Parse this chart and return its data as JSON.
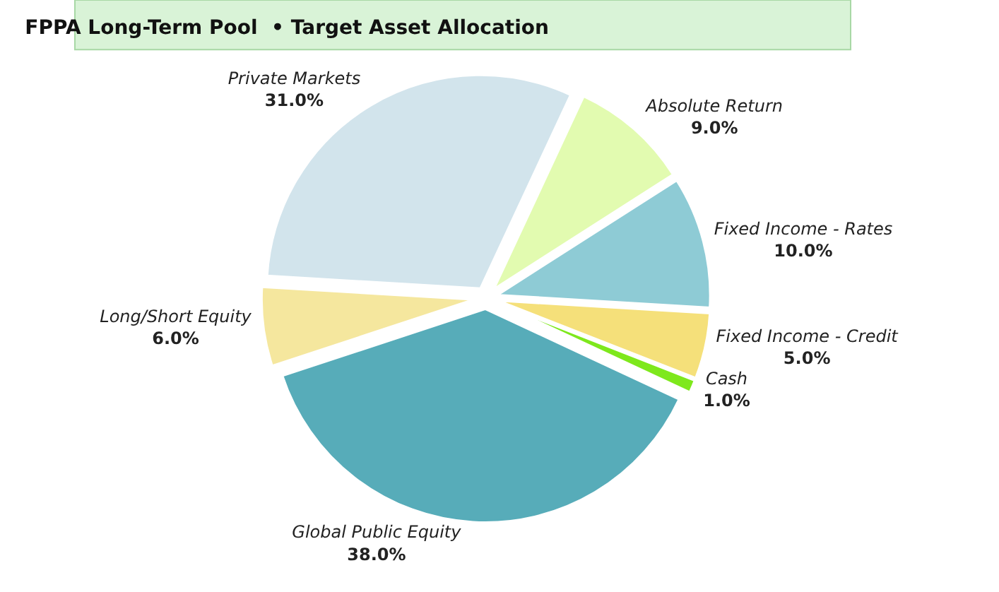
{
  "chart_data": {
    "type": "pie",
    "title": "FPPA Long-Term Pool  • Target Asset Allocation",
    "categories": [
      "Absolute Return",
      "Fixed Income - Rates",
      "Fixed Income - Credit",
      "Cash",
      "Global Public Equity",
      "Long/Short Equity",
      "Private Markets"
    ],
    "values": [
      9.0,
      10.0,
      5.0,
      1.0,
      38.0,
      6.0,
      31.0
    ],
    "value_labels": [
      "9.0%",
      "10.0%",
      "5.0%",
      "1.0%",
      "38.0%",
      "6.0%",
      "31.0%"
    ],
    "colors": [
      "#e2fbb0",
      "#8ecbd5",
      "#f5e07a",
      "#7ee81c",
      "#57acb9",
      "#f5e79e",
      "#d2e4ec"
    ],
    "legend": false
  }
}
